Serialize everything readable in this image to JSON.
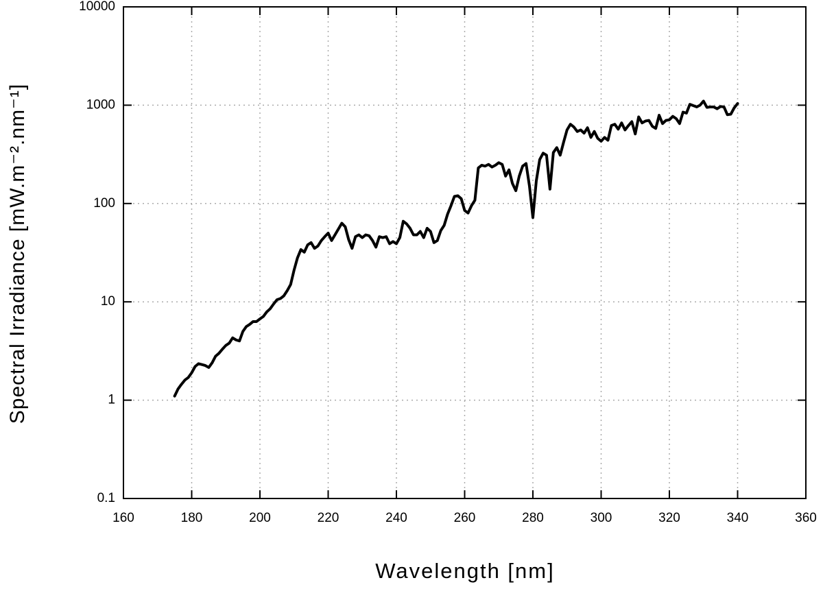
{
  "chart_data": {
    "type": "line",
    "xlabel": "Wavelength [nm]",
    "ylabel": "Spectral Irradiance [mW.m⁻².nm⁻¹]",
    "x": [
      175,
      176,
      177,
      178,
      179,
      180,
      181,
      182,
      183,
      184,
      185,
      186,
      187,
      188,
      189,
      190,
      191,
      192,
      193,
      194,
      195,
      196,
      197,
      198,
      199,
      200,
      201,
      202,
      203,
      204,
      205,
      206,
      207,
      208,
      209,
      210,
      211,
      212,
      213,
      214,
      215,
      216,
      217,
      218,
      219,
      220,
      221,
      222,
      223,
      224,
      225,
      226,
      227,
      228,
      229,
      230,
      231,
      232,
      233,
      234,
      235,
      236,
      237,
      238,
      239,
      240,
      241,
      242,
      243,
      244,
      245,
      246,
      247,
      248,
      249,
      250,
      251,
      252,
      253,
      254,
      255,
      256,
      257,
      258,
      259,
      260,
      261,
      262,
      263,
      264,
      265,
      266,
      267,
      268,
      269,
      270,
      271,
      272,
      273,
      274,
      275,
      276,
      277,
      278,
      279,
      280,
      281,
      282,
      283,
      284,
      285,
      286,
      287,
      288,
      289,
      290,
      291,
      292,
      293,
      294,
      295,
      296,
      297,
      298,
      299,
      300,
      301,
      302,
      303,
      304,
      305,
      306,
      307,
      308,
      309,
      310,
      311,
      312,
      313,
      314,
      315,
      316,
      317,
      318,
      319,
      320,
      321,
      322,
      323,
      324,
      325,
      326,
      327,
      328,
      329,
      330,
      331,
      332,
      333,
      334,
      335,
      336,
      337,
      338,
      339,
      340
    ],
    "values": [
      1.1,
      1.3,
      1.45,
      1.6,
      1.7,
      1.9,
      2.2,
      2.35,
      2.3,
      2.25,
      2.15,
      2.4,
      2.8,
      3.0,
      3.3,
      3.6,
      3.8,
      4.3,
      4.1,
      4.0,
      5.0,
      5.6,
      5.9,
      6.3,
      6.3,
      6.7,
      7.1,
      7.9,
      8.5,
      9.5,
      10.5,
      10.8,
      11.5,
      13,
      15,
      21,
      28,
      34,
      32,
      38,
      40,
      35,
      37,
      42,
      46,
      50,
      42,
      48,
      55,
      63,
      58,
      43,
      35,
      46,
      48,
      45,
      48,
      47,
      42,
      36,
      46,
      45,
      46,
      39,
      41,
      39,
      45,
      66,
      62,
      56,
      48,
      48,
      52,
      45,
      56,
      52,
      40,
      42,
      53,
      60,
      78,
      95,
      118,
      120,
      112,
      85,
      80,
      95,
      108,
      230,
      245,
      240,
      250,
      235,
      245,
      260,
      250,
      190,
      220,
      160,
      135,
      190,
      240,
      255,
      150,
      72,
      170,
      280,
      325,
      310,
      140,
      330,
      370,
      310,
      420,
      560,
      640,
      600,
      540,
      560,
      520,
      590,
      470,
      540,
      460,
      430,
      470,
      440,
      620,
      640,
      570,
      660,
      560,
      620,
      680,
      510,
      760,
      660,
      690,
      700,
      610,
      580,
      790,
      650,
      700,
      710,
      770,
      730,
      650,
      850,
      830,
      1020,
      990,
      960,
      1000,
      1100,
      950,
      960,
      960,
      920,
      970,
      960,
      800,
      810,
      940,
      1040
    ],
    "color": "#000000",
    "xlim": [
      160,
      360
    ],
    "xticks": [
      160,
      180,
      200,
      220,
      240,
      260,
      280,
      300,
      320,
      340,
      360
    ],
    "ylim": [
      0.1,
      10000
    ],
    "yticks": [
      0.1,
      1,
      10,
      100,
      1000,
      10000
    ],
    "log_y": true,
    "grid": true
  }
}
